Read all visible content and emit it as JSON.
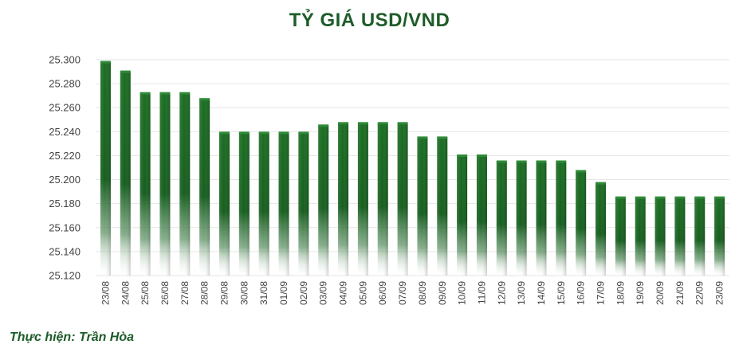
{
  "header": {
    "title": "TỶ GIÁ USD/VND"
  },
  "footer": {
    "credit": "Thực hiện: Trần Hòa"
  },
  "colors": {
    "bar_top": "#1a6b22",
    "bar_dark": "#0f4f18",
    "title": "#1e5c2a",
    "grid": "#e6e6e6"
  },
  "chart_data": {
    "type": "bar",
    "title": "TỶ GIÁ USD/VND",
    "categories": [
      "23/08",
      "24/08",
      "25/08",
      "26/08",
      "27/08",
      "28/08",
      "29/08",
      "30/08",
      "31/08",
      "01/09",
      "02/09",
      "03/09",
      "04/09",
      "05/09",
      "06/09",
      "07/09",
      "08/09",
      "09/09",
      "10/09",
      "11/09",
      "12/09",
      "13/09",
      "14/09",
      "15/09",
      "16/09",
      "17/09",
      "18/09",
      "19/09",
      "20/09",
      "21/09",
      "22/09",
      "23/09"
    ],
    "values": [
      25298,
      25290,
      25272,
      25272,
      25272,
      25267,
      25239,
      25239,
      25239,
      25239,
      25239,
      25245,
      25247,
      25247,
      25247,
      25247,
      25235,
      25235,
      25220,
      25220,
      25215,
      25215,
      25215,
      25215,
      25207,
      25197,
      25185,
      25185,
      25185,
      25185,
      25185,
      25185
    ],
    "ylim": [
      25120,
      25300
    ],
    "yticks": [
      "25.120",
      "25.140",
      "25.160",
      "25.180",
      "25.200",
      "25.220",
      "25.240",
      "25.260",
      "25.280",
      "25.300"
    ],
    "ytick_values": [
      25120,
      25140,
      25160,
      25180,
      25200,
      25220,
      25240,
      25260,
      25280,
      25300
    ],
    "grid": true,
    "legend": "none"
  }
}
